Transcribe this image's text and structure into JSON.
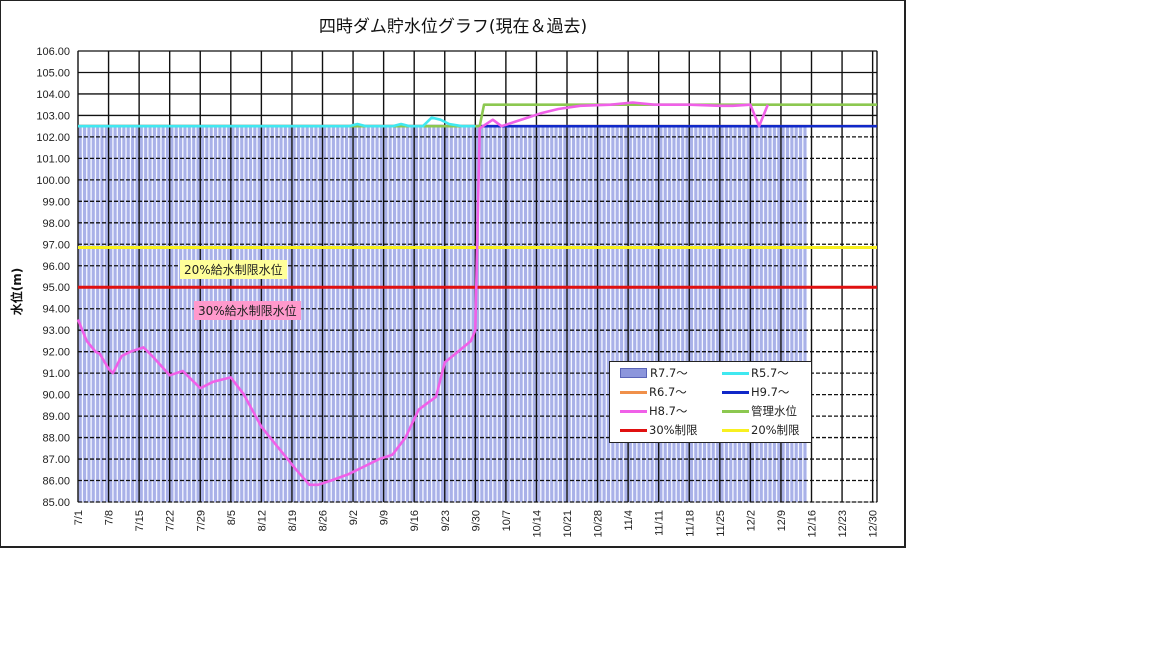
{
  "chart_data": {
    "type": "bar+line",
    "title": "四時ダム貯水位グラフ(現在＆過去)",
    "xlabel": "",
    "ylabel": "水位(m)",
    "ylim": [
      85.0,
      106.0
    ],
    "yticks": [
      "106.00",
      "105.00",
      "104.00",
      "103.00",
      "102.00",
      "101.00",
      "100.00",
      "99.00",
      "98.00",
      "97.00",
      "96.00",
      "95.00",
      "94.00",
      "93.00",
      "92.00",
      "91.00",
      "90.00",
      "89.00",
      "88.00",
      "87.00",
      "86.00",
      "85.00"
    ],
    "xticks": [
      "7/1",
      "7/8",
      "7/15",
      "7/22",
      "7/29",
      "8/5",
      "8/12",
      "8/19",
      "8/26",
      "9/2",
      "9/9",
      "9/16",
      "9/23",
      "9/30",
      "10/7",
      "10/14",
      "10/21",
      "10/28",
      "11/4",
      "11/11",
      "11/18",
      "11/25",
      "12/2",
      "12/9",
      "12/16",
      "12/23",
      "12/30"
    ],
    "grid": true,
    "legend_position": "lower-right inside plot",
    "series": [
      {
        "name": "R7.7〜",
        "kind": "bar",
        "color": "#8c96dc",
        "note": "daily bars ~102.5 from 7/1 to ~12/14",
        "value_approx": 102.5,
        "start_day": 0,
        "end_day": 166
      },
      {
        "name": "R5.7〜",
        "kind": "line",
        "color": "#40e8f0",
        "points": [
          [
            0,
            102.5
          ],
          [
            14,
            102.5
          ],
          [
            62,
            102.5
          ],
          [
            64,
            102.6
          ],
          [
            66,
            102.5
          ],
          [
            72,
            102.5
          ],
          [
            74,
            102.6
          ],
          [
            76,
            102.5
          ],
          [
            79,
            102.5
          ],
          [
            81,
            102.9
          ],
          [
            83,
            102.8
          ],
          [
            85,
            102.6
          ],
          [
            88,
            102.5
          ],
          [
            91,
            102.5
          ]
        ]
      },
      {
        "name": "R6.7〜",
        "kind": "line",
        "color": "#f0904a",
        "points": [
          [
            0,
            102.5
          ],
          [
            183,
            102.5
          ]
        ]
      },
      {
        "name": "H9.7〜",
        "kind": "line",
        "color": "#1028c8",
        "points": [
          [
            0,
            102.5
          ],
          [
            183,
            102.5
          ]
        ]
      },
      {
        "name": "H8.7〜",
        "kind": "line",
        "color": "#f060e8",
        "points": [
          [
            0,
            93.5
          ],
          [
            2,
            92.5
          ],
          [
            4,
            92.0
          ],
          [
            5,
            91.9
          ],
          [
            7,
            91.2
          ],
          [
            8,
            91.0
          ],
          [
            10,
            91.8
          ],
          [
            12,
            92.0
          ],
          [
            15,
            92.2
          ],
          [
            17,
            91.8
          ],
          [
            21,
            90.9
          ],
          [
            24,
            91.1
          ],
          [
            28,
            90.3
          ],
          [
            31,
            90.6
          ],
          [
            35,
            90.8
          ],
          [
            38,
            90.0
          ],
          [
            42,
            88.5
          ],
          [
            46,
            87.5
          ],
          [
            50,
            86.5
          ],
          [
            53,
            85.8
          ],
          [
            55,
            85.8
          ],
          [
            58,
            86.0
          ],
          [
            62,
            86.3
          ],
          [
            66,
            86.7
          ],
          [
            69,
            87.0
          ],
          [
            72,
            87.2
          ],
          [
            75,
            88.0
          ],
          [
            78,
            89.3
          ],
          [
            80,
            89.6
          ],
          [
            82,
            89.9
          ],
          [
            84,
            91.5
          ],
          [
            87,
            92.0
          ],
          [
            90,
            92.5
          ],
          [
            91,
            93.0
          ],
          [
            92,
            102.4
          ],
          [
            95,
            102.8
          ],
          [
            97,
            102.5
          ],
          [
            100,
            102.7
          ],
          [
            103,
            102.9
          ],
          [
            106,
            103.1
          ],
          [
            110,
            103.3
          ],
          [
            115,
            103.45
          ],
          [
            122,
            103.5
          ],
          [
            127,
            103.6
          ],
          [
            132,
            103.5
          ],
          [
            140,
            103.5
          ],
          [
            147,
            103.45
          ],
          [
            150,
            103.45
          ],
          [
            154,
            103.5
          ],
          [
            156,
            102.5
          ],
          [
            158,
            103.5
          ]
        ]
      },
      {
        "name": "管理水位",
        "kind": "line",
        "color": "#8cc850",
        "points": [
          [
            0,
            102.5
          ],
          [
            92,
            102.5
          ],
          [
            93,
            103.5
          ],
          [
            183,
            103.5
          ]
        ]
      },
      {
        "name": "30%制限",
        "kind": "line",
        "color": "#e01010",
        "points": [
          [
            0,
            95.0
          ],
          [
            183,
            95.0
          ]
        ]
      },
      {
        "name": "20%制限",
        "kind": "line",
        "color": "#f8f020",
        "points": [
          [
            0,
            96.85
          ],
          [
            183,
            96.85
          ]
        ]
      }
    ],
    "annotations": [
      {
        "text": "20%給水制限水位",
        "background": "#ffff99"
      },
      {
        "text": "30%給水制限水位",
        "background": "#ff99cc"
      }
    ]
  },
  "legend": {
    "items": [
      {
        "label": "R7.7〜",
        "color": "#8c96dc",
        "kind": "bar"
      },
      {
        "label": "R5.7〜",
        "color": "#40e8f0",
        "kind": "line"
      },
      {
        "label": "R6.7〜",
        "color": "#f0904a",
        "kind": "line"
      },
      {
        "label": "H9.7〜",
        "color": "#1028c8",
        "kind": "line"
      },
      {
        "label": "H8.7〜",
        "color": "#f060e8",
        "kind": "line"
      },
      {
        "label": "管理水位",
        "color": "#8cc850",
        "kind": "line"
      },
      {
        "label": "30%制限",
        "color": "#e01010",
        "kind": "line"
      },
      {
        "label": "20%制限",
        "color": "#f8f020",
        "kind": "line"
      }
    ]
  }
}
